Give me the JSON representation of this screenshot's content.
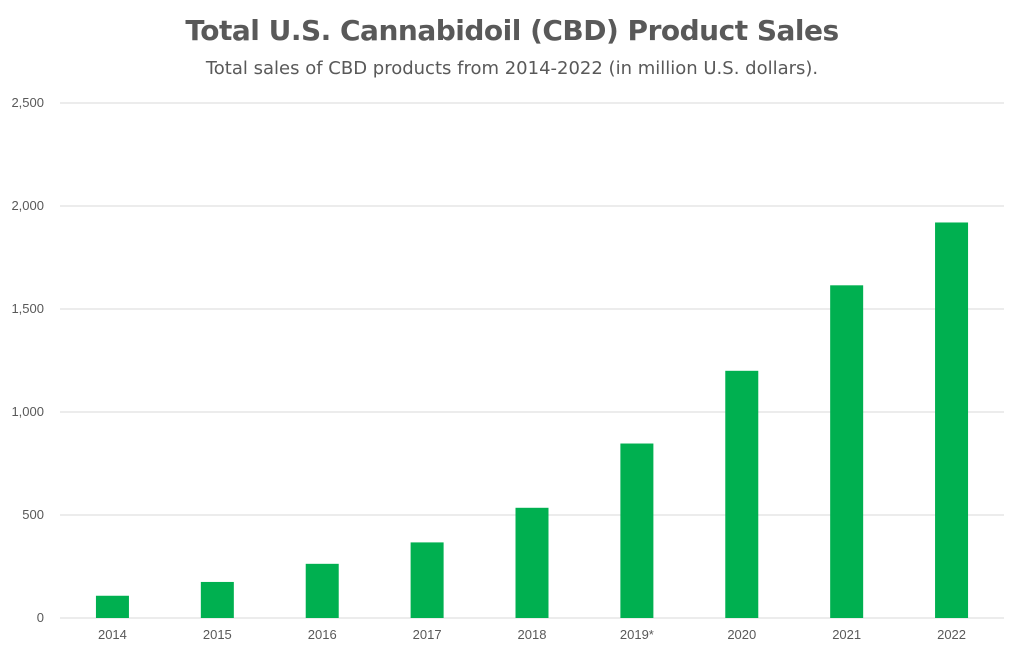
{
  "chart_data": {
    "type": "bar",
    "title": "Total U.S. Cannabidoil (CBD) Product Sales",
    "subtitle": "Total sales of CBD products from 2014-2022 (in million U.S. dollars).",
    "xlabel": "",
    "ylabel": "",
    "categories": [
      "2014",
      "2015",
      "2016",
      "2017",
      "2018",
      "2019*",
      "2020",
      "2021",
      "2022"
    ],
    "values": [
      108,
      175,
      263,
      367,
      535,
      847,
      1200,
      1615,
      1920
    ],
    "ylim": [
      0,
      2500
    ],
    "y_ticks": [
      0,
      500,
      1000,
      1500,
      2000,
      2500
    ],
    "y_tick_labels": [
      "0",
      "500",
      "1,000",
      "1,500",
      "2,000",
      "2,500"
    ],
    "bar_color": "#00b050",
    "gridline_color": "#d9d9d9",
    "grid": true,
    "legend": "none"
  }
}
